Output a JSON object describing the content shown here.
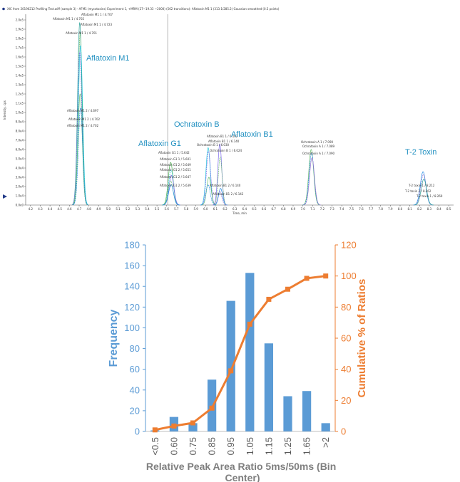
{
  "chromatogram": {
    "header": "XIC from 20190212 Profiling Test.wiff (sample 3) - AFM1 (mycotoxins) Experiment 1, +MRM (27~19.33 ~2000) (562 transitions): Aflatoxin M1 1 (313.1/285.2) Gaussian smoothed (0.5 points)",
    "ylabel": "Intensity, cps",
    "xlabel": "Time, min",
    "x_ticks": [
      "4.2",
      "4.3",
      "4.4",
      "4.5",
      "4.6",
      "4.7",
      "4.8",
      "4.9",
      "5.0",
      "5.1",
      "5.2",
      "5.3",
      "5.4",
      "5.5",
      "5.6",
      "5.7",
      "5.8",
      "5.9",
      "6.0",
      "6.1",
      "6.2",
      "6.3",
      "6.4",
      "6.5",
      "6.6",
      "6.7",
      "6.8",
      "6.9",
      "7.0",
      "7.1",
      "7.2",
      "7.3",
      "7.4",
      "7.5",
      "7.6",
      "7.7",
      "7.8",
      "7.9",
      "8.0",
      "8.1",
      "8.2",
      "8.3",
      "8.4",
      "8.5"
    ],
    "y_ticks": [
      "0.0e0",
      "1.0e4",
      "2.0e4",
      "3.0e4",
      "4.0e4",
      "5.0e4",
      "6.0e4",
      "7.0e4",
      "8.0e4",
      "9.0e4",
      "1.0e5",
      "1.1e5",
      "1.2e5",
      "1.3e5",
      "1.4e5",
      "1.5e5",
      "1.6e5",
      "1.7e5",
      "1.8e5",
      "1.9e5",
      "2.0e5"
    ],
    "compounds": [
      "Aflatoxin M1",
      "Aflatoxin G1",
      "Ochratoxin B",
      "Aflatoxin B1",
      "T-2 Toxin"
    ],
    "annotations": [
      "Aflatoxin M1 1 / 4.707",
      "Aflatoxin M1 1 / 4.702",
      "Aflatoxin M1 1 / 4.723",
      "Aflatoxin M1 1 / 4.701",
      "Aflatoxin M1 2 / 4.697",
      "Aflatoxin M1 2 / 4.702",
      "Aflatoxin M1 2 / 4.702",
      "Aflatoxin G1 1 / 5.642",
      "Aflatoxin G1 1 / 5.601",
      "Aflatoxin G1 2 / 5.649",
      "Aflatoxin G1 2 / 5.651",
      "Aflatoxin G1 2 / 5.647",
      "Aflatoxin G1 2 / 5.639",
      "Aflatoxin B1 1 / 6.162",
      "Aflatoxin B1 1 / 6.140",
      "Ochratoxin B 1 / 6.030",
      "Ochratoxin B 1 / 6.024",
      "Aflatoxin B1 2 / 6.140",
      "Aflatoxin B1 2 / 6.142",
      "Ochratoxin A 1 / 7.090",
      "Ochratoxin A 1 / 7.089",
      "Ochratoxin A 1 / 7.090",
      "T-2 toxin 1 / 8.212",
      "T-2 toxin 2 / 8.262",
      "T-2 toxin 1 / 8.269"
    ]
  },
  "chart_data": {
    "type": "bar",
    "categories": [
      "<0.5",
      "0.60",
      "0.75",
      "0.85",
      "0.95",
      "1.05",
      "1.15",
      "1.25",
      "1.65",
      ">2"
    ],
    "values": [
      1,
      14,
      8,
      50,
      126,
      153,
      85,
      34,
      39,
      8
    ],
    "cumulative": [
      1,
      3.5,
      5.5,
      15,
      39,
      69,
      85,
      91.5,
      98.5,
      100
    ],
    "xlabel": "Relative Peak Area Ratio 5ms/50ms (Bin Center)",
    "ylabel": "Frequency",
    "y2label": "Cumulative % of Ratios",
    "ylim": [
      0,
      180
    ],
    "y2lim": [
      0,
      120
    ],
    "y_ticks": [
      0,
      20,
      40,
      60,
      80,
      100,
      120,
      140,
      160,
      180
    ],
    "y2_ticks": [
      0,
      20,
      40,
      60,
      80,
      100,
      120
    ],
    "colors": {
      "bars": "#5b9bd5",
      "line": "#ed7d31",
      "axis_left": "#5b9bd5",
      "axis_right": "#ed7d31",
      "xlabel": "#7f7f7f"
    }
  }
}
